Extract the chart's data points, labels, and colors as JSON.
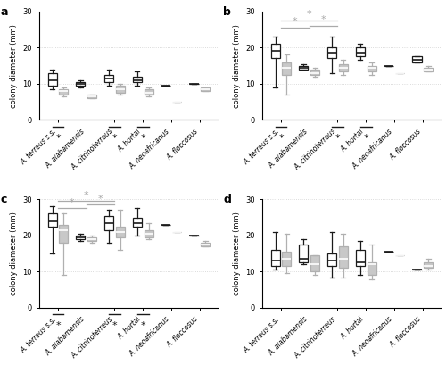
{
  "panels": [
    "a",
    "b",
    "c",
    "d"
  ],
  "species_keys": [
    "terreus",
    "alabamensis",
    "citrino",
    "hortai",
    "neoafri",
    "floccosus"
  ],
  "species_labels": [
    "A. terreus s.s.",
    "A. alabamensis",
    "A. citrinoterreus",
    "A. hortai",
    "A. neoafricanus",
    "A. floccosus"
  ],
  "ylim": [
    0,
    30
  ],
  "yticks": [
    0,
    10,
    20,
    30
  ],
  "panel_a": {
    "black_boxes": {
      "terreus": {
        "median": 11.0,
        "q1": 9.5,
        "q3": 13.0,
        "whislo": 8.5,
        "whishi": 14.0
      },
      "alabamensis": {
        "median": 10.0,
        "q1": 9.5,
        "q3": 10.5,
        "whislo": 9.0,
        "whishi": 11.0
      },
      "citrino": {
        "median": 11.5,
        "q1": 10.5,
        "q3": 12.5,
        "whislo": 9.5,
        "whishi": 14.0
      },
      "hortai": {
        "median": 11.0,
        "q1": 10.5,
        "q3": 12.0,
        "whislo": 9.5,
        "whishi": 13.5
      },
      "neoafri": {
        "median": 9.5,
        "q1": 9.5,
        "q3": 9.5,
        "whislo": 9.5,
        "whishi": 9.5
      },
      "floccosus": {
        "median": 10.0,
        "q1": 10.0,
        "q3": 10.0,
        "whislo": 10.0,
        "whishi": 10.0
      }
    },
    "grey_boxes": {
      "terreus": {
        "median": 8.0,
        "q1": 7.0,
        "q3": 8.5,
        "whislo": 6.5,
        "whishi": 9.0
      },
      "alabamensis": {
        "median": 6.5,
        "q1": 6.0,
        "q3": 7.0,
        "whislo": 6.0,
        "whishi": 7.0
      },
      "citrino": {
        "median": 8.5,
        "q1": 7.5,
        "q3": 9.5,
        "whislo": 7.0,
        "whishi": 10.0
      },
      "hortai": {
        "median": 7.5,
        "q1": 7.0,
        "q3": 8.5,
        "whislo": 6.5,
        "whishi": 9.0
      },
      "neoafri": {
        "median": 5.0,
        "q1": 5.0,
        "q3": 5.0,
        "whislo": 5.0,
        "whishi": 5.0
      },
      "floccosus": {
        "median": 8.5,
        "q1": 8.0,
        "q3": 9.0,
        "whislo": 8.0,
        "whishi": 9.0
      }
    },
    "sig_below": [
      "terreus",
      "citrino",
      "hortai"
    ],
    "sig_above": []
  },
  "panel_b": {
    "black_boxes": {
      "terreus": {
        "median": 19.0,
        "q1": 17.0,
        "q3": 21.0,
        "whislo": 9.0,
        "whishi": 23.0
      },
      "alabamensis": {
        "median": 14.5,
        "q1": 14.0,
        "q3": 15.0,
        "whislo": 14.0,
        "whishi": 15.5
      },
      "citrino": {
        "median": 18.5,
        "q1": 17.0,
        "q3": 20.0,
        "whislo": 13.0,
        "whishi": 23.0
      },
      "hortai": {
        "median": 18.5,
        "q1": 17.5,
        "q3": 20.0,
        "whislo": 16.5,
        "whishi": 21.0
      },
      "neoafri": {
        "median": 15.0,
        "q1": 15.0,
        "q3": 15.0,
        "whislo": 15.0,
        "whishi": 15.0
      },
      "floccosus": {
        "median": 16.5,
        "q1": 16.0,
        "q3": 17.5,
        "whislo": 16.0,
        "whishi": 17.5
      }
    },
    "grey_boxes": {
      "terreus": {
        "median": 14.5,
        "q1": 12.5,
        "q3": 16.0,
        "whislo": 7.0,
        "whishi": 18.0
      },
      "alabamensis": {
        "median": 13.0,
        "q1": 12.5,
        "q3": 14.0,
        "whislo": 12.0,
        "whishi": 14.5
      },
      "citrino": {
        "median": 14.5,
        "q1": 13.5,
        "q3": 15.5,
        "whislo": 12.5,
        "whishi": 16.5
      },
      "hortai": {
        "median": 14.5,
        "q1": 13.5,
        "q3": 15.0,
        "whislo": 12.5,
        "whishi": 16.0
      },
      "neoafri": {
        "median": 13.0,
        "q1": 13.0,
        "q3": 13.0,
        "whislo": 13.0,
        "whishi": 13.0
      },
      "floccosus": {
        "median": 14.0,
        "q1": 13.5,
        "q3": 14.5,
        "whislo": 13.5,
        "whishi": 15.0
      }
    },
    "sig_below": [
      "terreus",
      "citrino",
      "hortai"
    ],
    "sig_above": [
      {
        "from": "terreus",
        "to": "alabamensis",
        "y": 25.5
      },
      {
        "from": "terreus",
        "to": "citrino",
        "y": 27.5
      },
      {
        "from": "alabamensis",
        "to": "citrino",
        "y": 26.0
      }
    ]
  },
  "panel_c": {
    "black_boxes": {
      "terreus": {
        "median": 24.0,
        "q1": 22.5,
        "q3": 26.0,
        "whislo": 15.0,
        "whishi": 28.0
      },
      "alabamensis": {
        "median": 19.5,
        "q1": 19.0,
        "q3": 20.0,
        "whislo": 18.5,
        "whishi": 20.5
      },
      "citrino": {
        "median": 23.5,
        "q1": 21.5,
        "q3": 25.5,
        "whislo": 18.0,
        "whishi": 27.0
      },
      "hortai": {
        "median": 23.5,
        "q1": 22.5,
        "q3": 25.0,
        "whislo": 20.0,
        "whishi": 27.5
      },
      "neoafri": {
        "median": 23.0,
        "q1": 23.0,
        "q3": 23.0,
        "whislo": 23.0,
        "whishi": 23.0
      },
      "floccosus": {
        "median": 20.0,
        "q1": 20.0,
        "q3": 20.0,
        "whislo": 20.0,
        "whishi": 20.0
      }
    },
    "grey_boxes": {
      "terreus": {
        "median": 21.5,
        "q1": 18.0,
        "q3": 23.0,
        "whislo": 9.0,
        "whishi": 26.0
      },
      "alabamensis": {
        "median": 19.0,
        "q1": 18.5,
        "q3": 19.5,
        "whislo": 18.0,
        "whishi": 20.0
      },
      "citrino": {
        "median": 21.0,
        "q1": 19.5,
        "q3": 22.5,
        "whislo": 16.0,
        "whishi": 27.0
      },
      "hortai": {
        "median": 20.5,
        "q1": 19.5,
        "q3": 21.5,
        "whislo": 19.0,
        "whishi": 23.5
      },
      "neoafri": {
        "median": 21.0,
        "q1": 21.0,
        "q3": 21.0,
        "whislo": 21.0,
        "whishi": 21.0
      },
      "floccosus": {
        "median": 17.5,
        "q1": 17.0,
        "q3": 18.0,
        "whislo": 17.0,
        "whishi": 18.5
      }
    },
    "sig_below": [
      "terreus",
      "citrino",
      "hortai"
    ],
    "sig_above": [
      {
        "from": "terreus",
        "to": "alabamensis",
        "y": 27.5
      },
      {
        "from": "terreus",
        "to": "citrino",
        "y": 29.5
      },
      {
        "from": "alabamensis",
        "to": "citrino",
        "y": 28.5
      }
    ]
  },
  "panel_d": {
    "black_boxes": {
      "terreus": {
        "median": 13.0,
        "q1": 11.5,
        "q3": 16.0,
        "whislo": 10.5,
        "whishi": 21.0
      },
      "alabamensis": {
        "median": 13.5,
        "q1": 12.5,
        "q3": 17.5,
        "whislo": 12.0,
        "whishi": 19.0
      },
      "citrino": {
        "median": 13.0,
        "q1": 11.5,
        "q3": 15.0,
        "whislo": 8.5,
        "whishi": 21.0
      },
      "hortai": {
        "median": 12.5,
        "q1": 11.5,
        "q3": 16.0,
        "whislo": 9.0,
        "whishi": 18.5
      },
      "neoafri": {
        "median": 15.5,
        "q1": 15.5,
        "q3": 15.5,
        "whislo": 15.5,
        "whishi": 15.5
      },
      "floccosus": {
        "median": 10.5,
        "q1": 10.5,
        "q3": 10.5,
        "whislo": 10.5,
        "whishi": 10.5
      }
    },
    "grey_boxes": {
      "terreus": {
        "median": 13.5,
        "q1": 11.5,
        "q3": 15.5,
        "whislo": 9.5,
        "whishi": 20.5
      },
      "alabamensis": {
        "median": 12.0,
        "q1": 10.0,
        "q3": 14.5,
        "whislo": 9.0,
        "whishi": 14.5
      },
      "citrino": {
        "median": 13.5,
        "q1": 11.0,
        "q3": 17.0,
        "whislo": 8.5,
        "whishi": 20.5
      },
      "hortai": {
        "median": 12.0,
        "q1": 9.0,
        "q3": 12.5,
        "whislo": 8.0,
        "whishi": 17.5
      },
      "neoafri": {
        "median": 14.5,
        "q1": 14.5,
        "q3": 14.5,
        "whislo": 14.5,
        "whishi": 14.5
      },
      "floccosus": {
        "median": 11.5,
        "q1": 11.0,
        "q3": 12.5,
        "whislo": 10.5,
        "whishi": 13.5
      }
    },
    "sig_below": [],
    "sig_above": []
  },
  "black_color": "#1a1a1a",
  "grey_color": "#b0b0b0",
  "grey_face": "#c8c8c8",
  "sig_star_color_below": "#1a1a1a",
  "sig_star_color_above": "#aaaaaa",
  "grid_color": "#d0d0d0",
  "ylabel": "colony diameter (mm)"
}
